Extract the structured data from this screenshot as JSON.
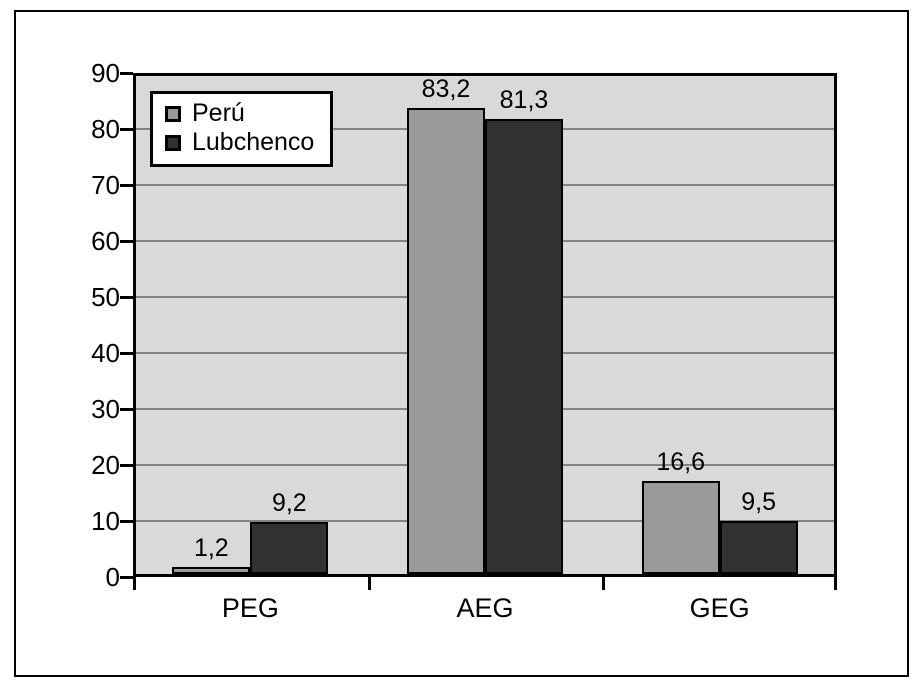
{
  "chart_data": {
    "type": "bar",
    "title": "",
    "xlabel": "",
    "ylabel": "",
    "categories": [
      "PEG",
      "AEG",
      "GEG"
    ],
    "series": [
      {
        "name": "Perú",
        "color": "#9A9A9A",
        "values": [
          1.2,
          83.2,
          16.6
        ],
        "labels": [
          "1,2",
          "83,2",
          "16,6"
        ]
      },
      {
        "name": "Lubchenco",
        "color": "#313131",
        "values": [
          9.2,
          81.3,
          9.5
        ],
        "labels": [
          "9,2",
          "81,3",
          "9,5"
        ]
      }
    ],
    "ylim": [
      0,
      90
    ],
    "ytick_step": 10,
    "ytick_labels": [
      "0",
      "10",
      "20",
      "30",
      "40",
      "50",
      "60",
      "70",
      "80",
      "90"
    ],
    "grid": true,
    "legend_position": "top-left",
    "value_label_decimal_separator": ",",
    "colors": {
      "page_background": "#FFFFFF",
      "plot_background": "#D9D9D9",
      "gridline": "#838383",
      "axis": "#000000",
      "legend_background": "#FFFFFF",
      "text": "#000000"
    }
  }
}
